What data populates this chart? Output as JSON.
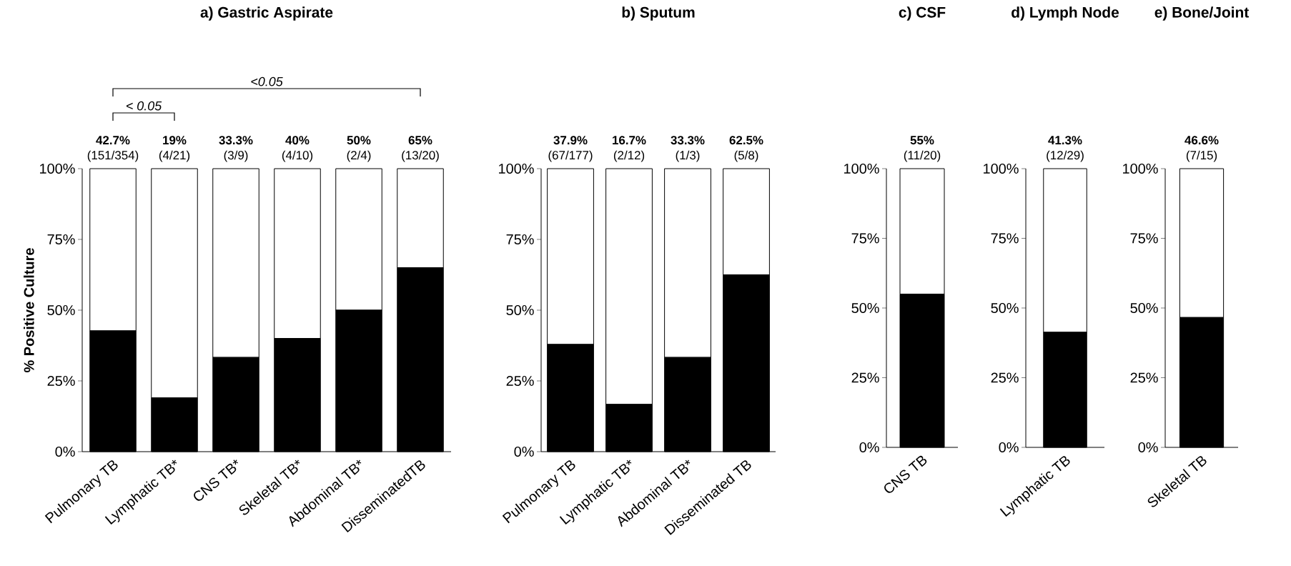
{
  "chart_data": [
    {
      "type": "bar",
      "stacked": true,
      "title": "a) Gastric Aspirate",
      "ylabel": "% Positive Culture",
      "categories": [
        "Pulmonary TB",
        "Lymphatic TB*",
        "CNS TB*",
        "Skeletal TB*",
        "Abdominal TB*",
        "DisseminatedTB"
      ],
      "series": [
        {
          "color": "#000000",
          "values": [
            42.7,
            19,
            33.3,
            40,
            50,
            65
          ]
        },
        {
          "color": "#ffffff",
          "values": [
            57.3,
            81,
            66.7,
            60,
            50,
            35
          ],
          "value_labels": [
            "(151/354)",
            "(4/21)",
            "(3/9)",
            "(4/10)",
            "(2/4)",
            "(13/20)"
          ]
        }
      ],
      "ylim": [
        0,
        100
      ],
      "yticks": [
        {
          "value": 0,
          "label": "0%"
        },
        {
          "value": 25,
          "label": "25%"
        },
        {
          "value": 50,
          "label": "50%"
        },
        {
          "value": 75,
          "label": "75%"
        },
        {
          "value": 100,
          "label": "100%"
        }
      ],
      "annotations": [
        "< 0.05",
        "<0.05",
        {
          "text": "42.7%",
          "x": "Pulmonary TB",
          "y": 100
        },
        {
          "text": "19%",
          "x": "Lymphatic TB*",
          "y": 100
        },
        {
          "text": "33.3%",
          "x": "CNS TB*",
          "y": 100
        },
        {
          "text": "40%",
          "x": "Skeletal TB*",
          "y": 100
        },
        {
          "text": "50%",
          "x": "Abdominal TB*",
          "y": 100
        },
        {
          "text": "65%",
          "x": "DisseminatedTB",
          "y": 100
        }
      ]
    },
    {
      "type": "bar",
      "stacked": true,
      "title": "b) Sputum",
      "categories": [
        "Pulmonary TB",
        "Lymphatic TB*",
        "Abdominal TB*",
        "Disseminated TB"
      ],
      "series": [
        {
          "color": "#000000",
          "values": [
            37.9,
            16.7,
            33.3,
            62.5
          ]
        },
        {
          "color": "#ffffff",
          "values": [
            62.1,
            83.3,
            66.7,
            37.5
          ],
          "value_labels": [
            "(67/177)",
            "(2/12)",
            "(1/3)",
            "(5/8)"
          ]
        }
      ],
      "ylim": [
        0,
        100
      ],
      "yticks": [
        {
          "value": 0,
          "label": "0%"
        },
        {
          "value": 25,
          "label": "25%"
        },
        {
          "value": 50,
          "label": "50%"
        },
        {
          "value": 75,
          "label": "75%"
        },
        {
          "value": 100,
          "label": "100%"
        }
      ],
      "annotations": [
        {
          "text": "37.9%",
          "x": "Pulmonary TB",
          "y": 100
        },
        {
          "text": "16.7%",
          "x": "Lymphatic TB*",
          "y": 100
        },
        {
          "text": "33.3%",
          "x": "Abdominal TB*",
          "y": 100
        },
        {
          "text": "62.5%",
          "x": "Disseminated TB",
          "y": 100
        }
      ]
    },
    {
      "type": "bar",
      "stacked": true,
      "title": "c) CSF",
      "categories": [
        "CNS TB"
      ],
      "series": [
        {
          "color": "#000000",
          "values": [
            55
          ]
        },
        {
          "color": "#ffffff",
          "values": [
            45
          ],
          "value_labels": [
            "(11/20)"
          ]
        }
      ],
      "ylim": [
        0,
        100
      ],
      "yticks": [
        {
          "value": 0,
          "label": "0%"
        },
        {
          "value": 25,
          "label": "25%"
        },
        {
          "value": 50,
          "label": "50%"
        },
        {
          "value": 75,
          "label": "75%"
        },
        {
          "value": 100,
          "label": "100%"
        }
      ],
      "annotations": [
        {
          "text": "55%",
          "x": "CNS TB",
          "y": 100
        }
      ]
    },
    {
      "type": "bar",
      "stacked": true,
      "title": "d) Lymph Node",
      "categories": [
        "Lymphatic TB"
      ],
      "series": [
        {
          "color": "#000000",
          "values": [
            41.3
          ]
        },
        {
          "color": "#ffffff",
          "values": [
            58.7
          ],
          "value_labels": [
            "(12/29)"
          ]
        }
      ],
      "ylim": [
        0,
        100
      ],
      "yticks": [
        {
          "value": 0,
          "label": "0%"
        },
        {
          "value": 25,
          "label": "25%"
        },
        {
          "value": 50,
          "label": "50%"
        },
        {
          "value": 75,
          "label": "75%"
        },
        {
          "value": 100,
          "label": "100%"
        }
      ],
      "annotations": [
        {
          "text": "41.3%",
          "x": "Lymphatic TB",
          "y": 100
        }
      ]
    },
    {
      "type": "bar",
      "stacked": true,
      "title": "e) Bone/Joint",
      "categories": [
        "Skeletal TB"
      ],
      "series": [
        {
          "color": "#000000",
          "values": [
            46.6
          ]
        },
        {
          "color": "#ffffff",
          "values": [
            53.4
          ],
          "value_labels": [
            "(7/15)"
          ]
        }
      ],
      "ylim": [
        0,
        100
      ],
      "yticks": [
        {
          "value": 0,
          "label": "0%"
        },
        {
          "value": 25,
          "label": "25%"
        },
        {
          "value": 50,
          "label": "50%"
        },
        {
          "value": 75,
          "label": "75%"
        },
        {
          "value": 100,
          "label": "100%"
        }
      ],
      "annotations": [
        {
          "text": "46.6%",
          "x": "Skeletal TB",
          "y": 100
        }
      ]
    }
  ]
}
